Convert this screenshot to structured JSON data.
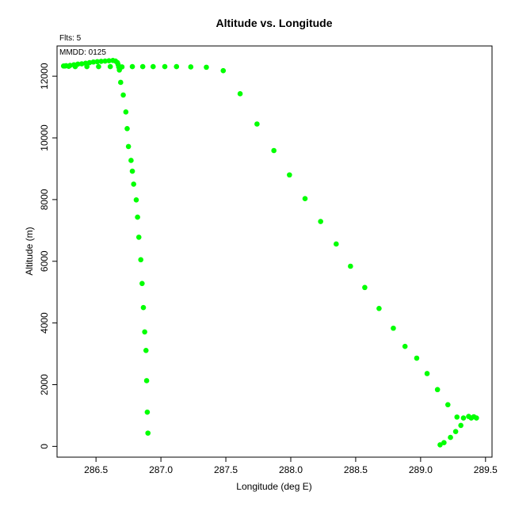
{
  "chart_data": {
    "type": "scatter",
    "title": "Altitude vs. Longitude",
    "xlabel": "Longitude (deg E)",
    "ylabel": "Altitude (m)",
    "xlim": [
      286.2,
      289.55
    ],
    "ylim": [
      -350,
      12980
    ],
    "x_ticks": [
      286.5,
      287.0,
      287.5,
      288.0,
      288.5,
      289.0,
      289.5
    ],
    "x_tick_labels": [
      "286.5",
      "287.0",
      "287.5",
      "288.0",
      "288.5",
      "289.0",
      "289.5"
    ],
    "y_ticks": [
      0,
      2000,
      4000,
      6000,
      8000,
      10000,
      12000
    ],
    "y_tick_labels": [
      "0",
      "2000",
      "4000",
      "6000",
      "8000",
      "10000",
      "12000"
    ],
    "annotations": {
      "flts": "Flts: 5",
      "mmdd": "MMDD: 0125"
    },
    "grid": false,
    "colors": {
      "points": "#00ff00"
    },
    "points": [
      [
        289.15,
        50
      ],
      [
        289.18,
        120
      ],
      [
        289.23,
        290
      ],
      [
        289.27,
        480
      ],
      [
        289.31,
        680
      ],
      [
        289.33,
        920
      ],
      [
        289.28,
        950
      ],
      [
        289.37,
        970
      ],
      [
        289.39,
        920
      ],
      [
        289.41,
        960
      ],
      [
        289.43,
        920
      ],
      [
        289.21,
        1350
      ],
      [
        289.13,
        1840
      ],
      [
        289.05,
        2360
      ],
      [
        288.97,
        2860
      ],
      [
        288.88,
        3240
      ],
      [
        288.79,
        3830
      ],
      [
        288.68,
        4470
      ],
      [
        288.57,
        5150
      ],
      [
        288.46,
        5840
      ],
      [
        288.35,
        6560
      ],
      [
        288.23,
        7290
      ],
      [
        288.11,
        8030
      ],
      [
        287.99,
        8800
      ],
      [
        287.87,
        9590
      ],
      [
        287.74,
        10450
      ],
      [
        287.61,
        11430
      ],
      [
        287.48,
        12180
      ],
      [
        287.35,
        12290
      ],
      [
        287.23,
        12300
      ],
      [
        287.12,
        12310
      ],
      [
        287.03,
        12310
      ],
      [
        286.94,
        12310
      ],
      [
        286.86,
        12310
      ],
      [
        286.78,
        12310
      ],
      [
        286.7,
        12300
      ],
      [
        286.61,
        12310
      ],
      [
        286.52,
        12310
      ],
      [
        286.43,
        12310
      ],
      [
        286.34,
        12310
      ],
      [
        286.29,
        12320
      ],
      [
        286.26,
        12330
      ],
      [
        286.25,
        12330
      ],
      [
        286.27,
        12340
      ],
      [
        286.3,
        12350
      ],
      [
        286.33,
        12370
      ],
      [
        286.36,
        12390
      ],
      [
        286.39,
        12400
      ],
      [
        286.42,
        12420
      ],
      [
        286.45,
        12440
      ],
      [
        286.48,
        12460
      ],
      [
        286.51,
        12470
      ],
      [
        286.54,
        12480
      ],
      [
        286.57,
        12490
      ],
      [
        286.6,
        12500
      ],
      [
        286.63,
        12510
      ],
      [
        286.65,
        12490
      ],
      [
        286.665,
        12440
      ],
      [
        286.67,
        12380
      ],
      [
        286.675,
        12300
      ],
      [
        286.68,
        12200
      ],
      [
        286.69,
        11800
      ],
      [
        286.71,
        11390
      ],
      [
        286.73,
        10840
      ],
      [
        286.74,
        10300
      ],
      [
        286.75,
        9720
      ],
      [
        286.77,
        9270
      ],
      [
        286.78,
        8920
      ],
      [
        286.79,
        8500
      ],
      [
        286.81,
        7990
      ],
      [
        286.82,
        7430
      ],
      [
        286.83,
        6780
      ],
      [
        286.845,
        6050
      ],
      [
        286.855,
        5280
      ],
      [
        286.865,
        4500
      ],
      [
        286.875,
        3710
      ],
      [
        286.885,
        3110
      ],
      [
        286.89,
        2130
      ],
      [
        286.895,
        1110
      ],
      [
        286.9,
        430
      ]
    ]
  }
}
